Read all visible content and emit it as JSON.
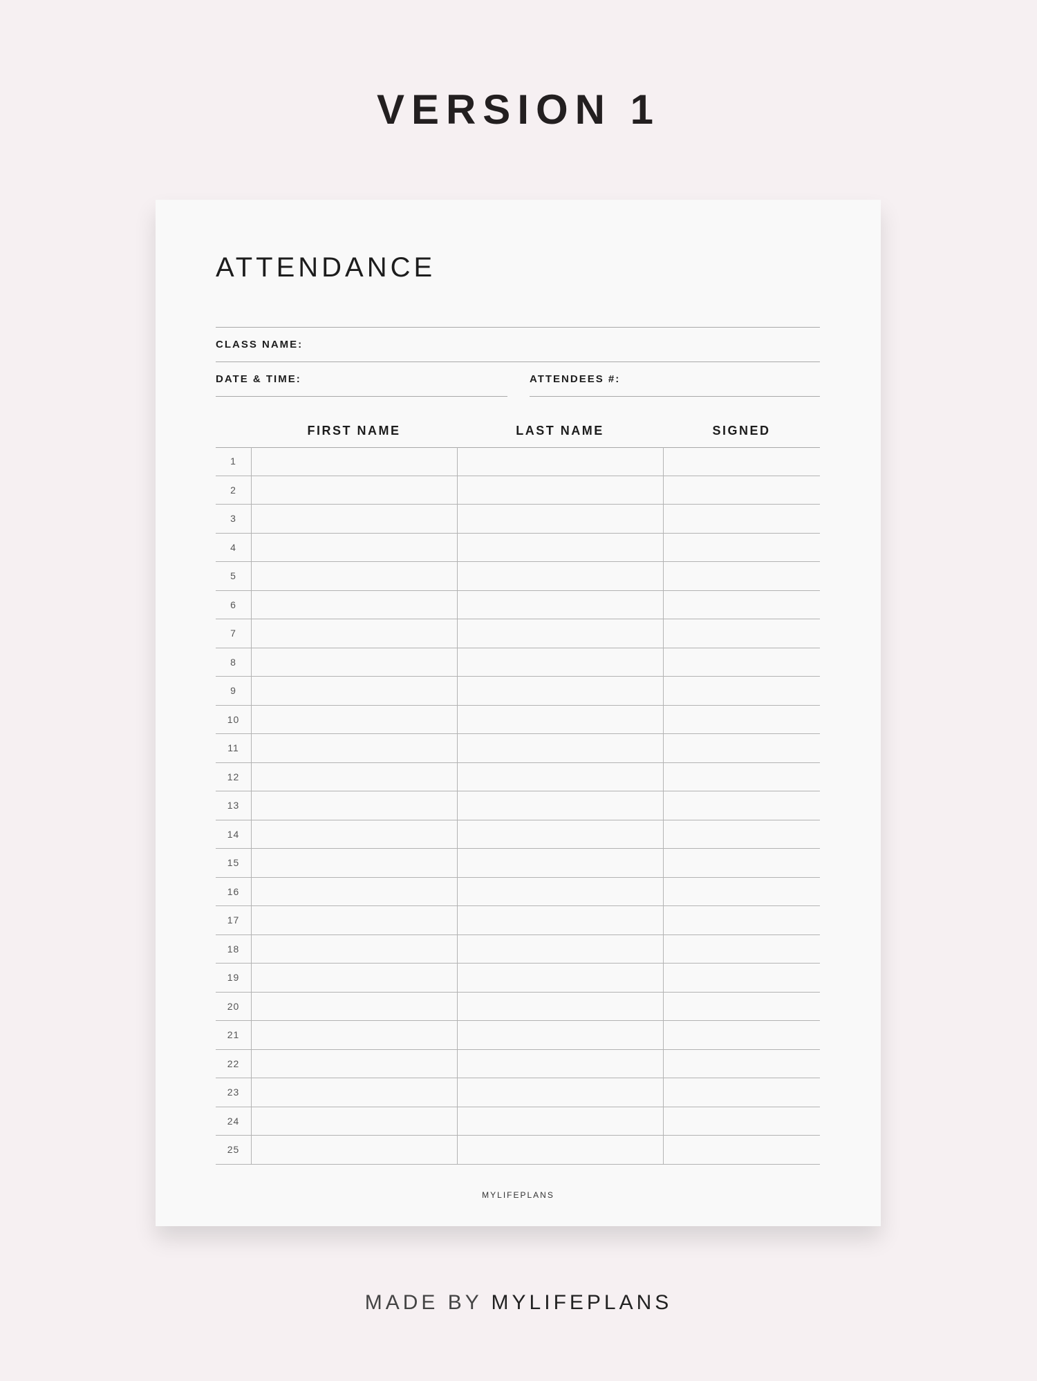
{
  "heading": "VERSION 1",
  "sheet": {
    "title": "ATTENDANCE",
    "fields": {
      "class_name": "CLASS NAME:",
      "date_time": "DATE & TIME:",
      "attendees": "ATTENDEES #:"
    },
    "table": {
      "columns": [
        "FIRST NAME",
        "LAST NAME",
        "SIGNED"
      ],
      "rows": [
        "1",
        "2",
        "3",
        "4",
        "5",
        "6",
        "7",
        "8",
        "9",
        "10",
        "11",
        "12",
        "13",
        "14",
        "15",
        "16",
        "17",
        "18",
        "19",
        "20",
        "21",
        "22",
        "23",
        "24",
        "25"
      ]
    },
    "footer": "MYLIFEPLANS"
  },
  "credit": {
    "prefix": "MADE BY",
    "brand": "MYLIFEPLANS"
  }
}
